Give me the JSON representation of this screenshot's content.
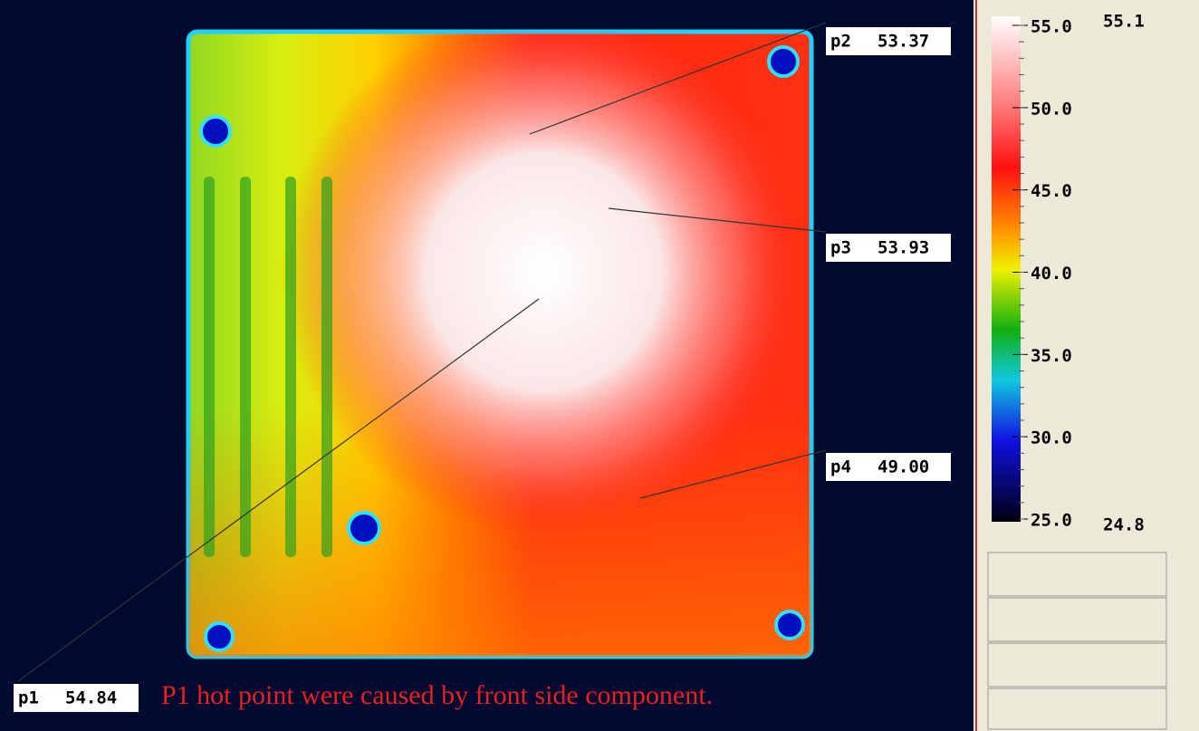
{
  "points": [
    {
      "label": "p1",
      "value": "54.84"
    },
    {
      "label": "p2",
      "value": "53.37"
    },
    {
      "label": "p3",
      "value": "53.93"
    },
    {
      "label": "p4",
      "value": "49.00"
    }
  ],
  "caption": "P1 hot point were caused by front side component.",
  "scale": {
    "max": "55.1",
    "min": "24.8",
    "ticks": [
      "55.0",
      "50.0",
      "45.0",
      "40.0",
      "35.0",
      "30.0",
      "25.0"
    ]
  }
}
